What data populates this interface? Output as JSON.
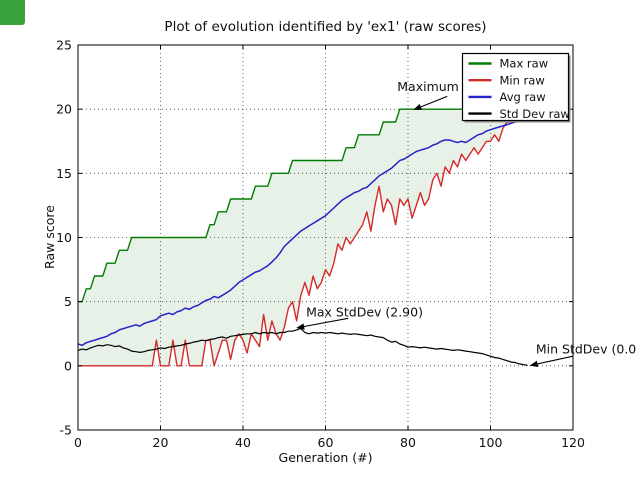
{
  "badge": {
    "color": "#3ba33b"
  },
  "chart_data": {
    "type": "line",
    "title": "Plot of evolution identified by 'ex1' (raw scores)",
    "xlabel": "Generation (#)",
    "ylabel": "Raw score",
    "xlim": [
      0,
      120
    ],
    "ylim": [
      -5,
      25
    ],
    "x_ticks": [
      0,
      20,
      40,
      60,
      80,
      100,
      120
    ],
    "y_ticks": [
      25,
      20,
      15,
      10,
      5,
      0,
      -5
    ],
    "grid": {
      "style": "dotted",
      "color": "#222222"
    },
    "x_start": 0,
    "x_step": 1,
    "fill_between": {
      "upper": "Max raw",
      "lower": "Min raw",
      "color": "rgba(60,140,60,0.12)"
    },
    "legend": {
      "position": "upper right",
      "items": [
        {
          "label": "Max raw",
          "color": "#007d00"
        },
        {
          "label": "Min raw",
          "color": "#d42a2a"
        },
        {
          "label": "Avg raw",
          "color": "#2424c8"
        },
        {
          "label": "Std Dev raw",
          "color": "#000000"
        }
      ]
    },
    "annotations": [
      {
        "text": "Maximum",
        "text_at": [
          77.4,
          21.4
        ],
        "arrow": {
          "from": [
            89.5,
            21.0
          ],
          "to": [
            81.3,
            19.95
          ]
        }
      },
      {
        "text": "Max StdDev (2.90)",
        "text_at": [
          55.3,
          3.85
        ],
        "arrow": {
          "from": [
            65.5,
            3.7
          ],
          "to": [
            52.9,
            2.95
          ]
        }
      },
      {
        "text": "Min StdDev (0.0",
        "text_at": [
          111.0,
          0.95
        ],
        "arrow": {
          "from": [
            120.0,
            0.75
          ],
          "to": [
            109.5,
            0.02
          ]
        }
      }
    ],
    "series": [
      {
        "name": "Max raw",
        "color": "#007d00",
        "width": 1.4,
        "values": [
          5,
          5,
          6,
          6,
          7,
          7,
          7,
          8,
          8,
          8,
          9,
          9,
          9,
          10,
          10,
          10,
          10,
          10,
          10,
          10,
          10,
          10,
          10,
          10,
          10,
          10,
          10,
          10,
          10,
          10,
          10,
          10,
          11,
          11,
          12,
          12,
          12,
          13,
          13,
          13,
          13,
          13,
          13,
          14,
          14,
          14,
          14,
          15,
          15,
          15,
          15,
          15,
          16,
          16,
          16,
          16,
          16,
          16,
          16,
          16,
          16,
          16,
          16,
          16,
          16,
          17,
          17,
          17,
          18,
          18,
          18,
          18,
          18,
          18,
          19,
          19,
          19,
          19,
          20,
          20,
          20,
          20,
          20,
          20,
          20,
          20,
          20,
          20,
          20,
          20,
          20,
          20,
          20,
          20,
          20,
          20,
          20,
          20,
          20,
          20,
          20,
          20,
          20,
          20,
          20,
          20,
          20,
          20,
          20
        ]
      },
      {
        "name": "Min raw",
        "color": "#d42a2a",
        "width": 1.4,
        "values": [
          0,
          0,
          0,
          0,
          0,
          0,
          0,
          0,
          0,
          0,
          0,
          0,
          0,
          0,
          0,
          0,
          0,
          0,
          0,
          2,
          0,
          0,
          0,
          2,
          0,
          0,
          2,
          0,
          0,
          0,
          0,
          2,
          2,
          0,
          1,
          2,
          2,
          0.5,
          2,
          2.5,
          2,
          1,
          2.5,
          2,
          1.5,
          4,
          2,
          3.5,
          2.5,
          2,
          3,
          4.5,
          5,
          3.5,
          5.5,
          6.5,
          5.5,
          7,
          6,
          6.5,
          7.5,
          7,
          8,
          9.5,
          9,
          10,
          9.5,
          10,
          10.5,
          11,
          12,
          10.5,
          12.5,
          14,
          12,
          13,
          12.5,
          11,
          13,
          12.5,
          13,
          11.5,
          12.5,
          13.5,
          12.5,
          13,
          14.5,
          15,
          14,
          15.5,
          15,
          16,
          15.5,
          16.5,
          16,
          16.5,
          17,
          16.5,
          17,
          17.5,
          17.5,
          18,
          17.5,
          18.5,
          19,
          19,
          19.5,
          20,
          20
        ]
      },
      {
        "name": "Avg raw",
        "color": "#2424c8",
        "width": 1.5,
        "values": [
          1.7,
          1.6,
          1.8,
          1.9,
          2.0,
          2.1,
          2.2,
          2.3,
          2.5,
          2.6,
          2.8,
          2.9,
          3.0,
          3.1,
          3.2,
          3.1,
          3.3,
          3.4,
          3.5,
          3.6,
          3.9,
          4.0,
          4.1,
          4.0,
          4.2,
          4.3,
          4.5,
          4.4,
          4.6,
          4.7,
          4.9,
          5.1,
          5.2,
          5.4,
          5.3,
          5.5,
          5.7,
          5.9,
          6.2,
          6.5,
          6.7,
          6.9,
          7.1,
          7.3,
          7.4,
          7.6,
          7.8,
          8.1,
          8.4,
          8.8,
          9.3,
          9.6,
          9.9,
          10.2,
          10.5,
          10.7,
          10.9,
          11.1,
          11.3,
          11.5,
          11.7,
          12.0,
          12.3,
          12.6,
          12.9,
          13.1,
          13.3,
          13.5,
          13.6,
          13.8,
          13.9,
          14.2,
          14.5,
          14.8,
          15.0,
          15.2,
          15.4,
          15.7,
          16.0,
          16.1,
          16.3,
          16.5,
          16.7,
          16.8,
          16.9,
          17.0,
          17.2,
          17.3,
          17.5,
          17.6,
          17.6,
          17.5,
          17.4,
          17.5,
          17.4,
          17.6,
          17.8,
          18.0,
          18.1,
          18.3,
          18.4,
          18.5,
          18.6,
          18.7,
          18.8,
          18.9,
          19.0,
          19.2,
          19.4
        ]
      },
      {
        "name": "Std Dev raw",
        "color": "#000000",
        "width": 1.2,
        "values": [
          1.2,
          1.3,
          1.25,
          1.4,
          1.5,
          1.6,
          1.55,
          1.65,
          1.6,
          1.5,
          1.55,
          1.4,
          1.3,
          1.15,
          1.1,
          1.05,
          1.1,
          1.2,
          1.25,
          1.3,
          1.4,
          1.35,
          1.45,
          1.5,
          1.55,
          1.6,
          1.7,
          1.75,
          1.85,
          1.9,
          2.0,
          1.95,
          2.05,
          2.1,
          2.2,
          2.25,
          2.15,
          2.3,
          2.35,
          2.4,
          2.45,
          2.5,
          2.5,
          2.6,
          2.5,
          2.6,
          2.55,
          2.6,
          2.5,
          2.6,
          2.6,
          2.7,
          2.7,
          2.8,
          2.9,
          2.6,
          2.5,
          2.6,
          2.55,
          2.6,
          2.55,
          2.6,
          2.55,
          2.5,
          2.55,
          2.5,
          2.45,
          2.5,
          2.45,
          2.4,
          2.35,
          2.4,
          2.3,
          2.25,
          2.2,
          2.0,
          1.85,
          1.9,
          1.7,
          1.6,
          1.45,
          1.5,
          1.45,
          1.4,
          1.45,
          1.4,
          1.35,
          1.3,
          1.35,
          1.3,
          1.25,
          1.2,
          1.25,
          1.2,
          1.15,
          1.1,
          1.05,
          1.0,
          0.95,
          0.85,
          0.75,
          0.65,
          0.6,
          0.5,
          0.4,
          0.3,
          0.25,
          0.15,
          0.1,
          0.05
        ]
      }
    ]
  }
}
